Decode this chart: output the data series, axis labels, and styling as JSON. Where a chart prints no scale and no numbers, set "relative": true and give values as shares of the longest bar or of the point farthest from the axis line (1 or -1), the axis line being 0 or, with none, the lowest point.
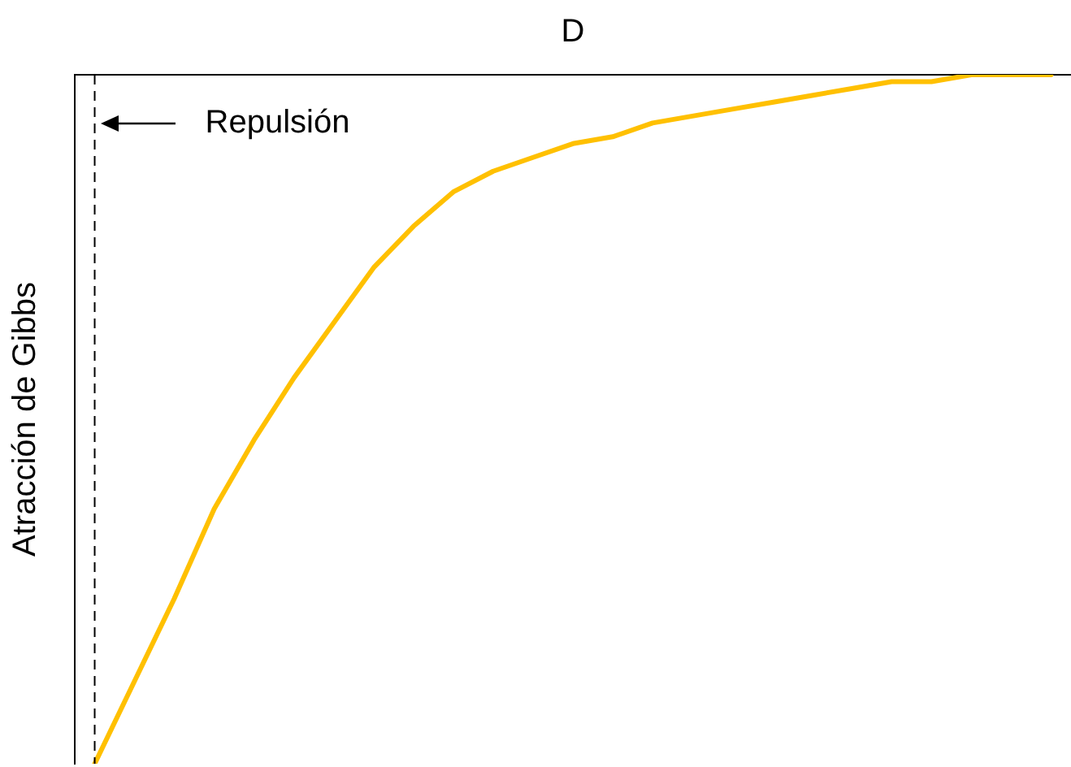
{
  "chart_data": {
    "type": "line",
    "xlabel": "D",
    "ylabel": "Atracción de Gibbs",
    "relative": true,
    "categories": [
      null,
      null,
      null,
      null,
      null,
      null,
      null,
      null,
      null,
      null,
      null,
      null,
      null,
      null,
      null,
      null,
      null,
      null,
      null,
      null,
      null,
      null,
      null,
      null,
      null
    ],
    "grid": false,
    "legend": false,
    "marker": "none",
    "line_style": "solid",
    "series": [
      {
        "color": "#ffc000",
        "values": [
          -1,
          -0.88,
          -0.76,
          -0.63,
          -0.53,
          -0.44,
          -0.36,
          -0.28,
          -0.22,
          -0.17,
          -0.14,
          -0.12,
          -0.1,
          -0.09,
          -0.07,
          -0.06,
          -0.05,
          -0.04,
          -0.03,
          -0.02,
          -0.01,
          -0.01,
          0,
          0,
          0
        ]
      }
    ],
    "ref_lines": [
      {
        "axis": "x",
        "label": "Repulsión",
        "color": "#000000",
        "line_style": "dashed"
      }
    ]
  }
}
